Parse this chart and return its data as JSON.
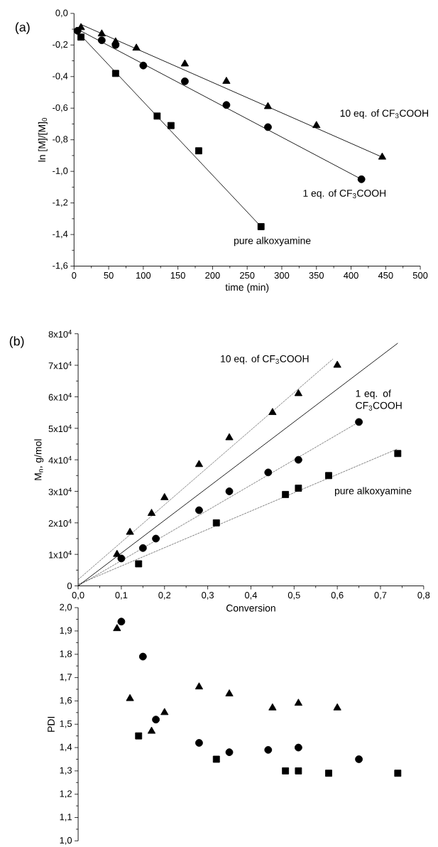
{
  "chart_data": [
    {
      "type": "scatter",
      "title": "(a)",
      "xlabel": "time (min)",
      "ylabel": "ln [M]/[M]$_{0}$",
      "xlim": [
        0,
        500
      ],
      "ylim": [
        -1.6,
        0
      ],
      "xticks": [
        0,
        50,
        100,
        150,
        200,
        250,
        300,
        350,
        400,
        450,
        500
      ],
      "yticks": [
        {
          "value": -1.6,
          "label": "-1,6"
        },
        {
          "value": -1.4,
          "label": "-1,4"
        },
        {
          "value": -1.2,
          "label": "-1,2"
        },
        {
          "value": -1.0,
          "label": "-1,0"
        },
        {
          "value": -0.8,
          "label": "-0,8"
        },
        {
          "value": -0.6,
          "label": "-0,6"
        },
        {
          "value": -0.4,
          "label": "-0,4"
        },
        {
          "value": -0.2,
          "label": "-0,2"
        },
        {
          "value": 0,
          "label": "0,0"
        }
      ],
      "series": [
        {
          "name": "10 eq. of CF$_{3}$COOH",
          "color": "#000000",
          "marker": "triangle",
          "x": [
            10,
            40,
            60,
            90,
            160,
            220,
            280,
            350,
            445
          ],
          "values": [
            -0.09,
            -0.13,
            -0.18,
            -0.22,
            -0.32,
            -0.43,
            -0.59,
            -0.71,
            -0.91
          ]
        },
        {
          "name": "1 eq. of CF$_{3}$COOH",
          "color": "#000000",
          "marker": "circle",
          "x": [
            5,
            40,
            60,
            100,
            160,
            220,
            280,
            415
          ],
          "values": [
            -0.11,
            -0.17,
            -0.2,
            -0.33,
            -0.43,
            -0.58,
            -0.72,
            -1.05
          ]
        },
        {
          "name": "pure alkoxyamine",
          "color": "#000000",
          "marker": "square",
          "x": [
            10,
            60,
            120,
            140,
            180,
            270
          ],
          "values": [
            -0.15,
            -0.38,
            -0.65,
            -0.71,
            -0.87,
            -1.35
          ]
        },
        {
          "type": "line",
          "color": "#000000",
          "marker": "none",
          "line_style": "solid",
          "x": [
            10,
            445
          ],
          "values": [
            -0.07,
            -0.91
          ]
        },
        {
          "type": "line",
          "color": "#000000",
          "marker": "none",
          "line_style": "solid",
          "x": [
            5,
            415
          ],
          "values": [
            -0.1,
            -1.05
          ]
        },
        {
          "type": "line",
          "color": "#000000",
          "marker": "none",
          "line_style": "solid",
          "x": [
            10,
            270
          ],
          "values": [
            -0.14,
            -1.35
          ]
        }
      ]
    },
    {
      "type": "scatter",
      "title": "(b)",
      "xlabel": "Conversion",
      "ylabel": "M$_{n}$, g/mol",
      "xlim": [
        0,
        0.8
      ],
      "ylim": [
        0,
        80000
      ],
      "xticks": [
        {
          "value": 0,
          "label": "0,0"
        },
        {
          "value": 0.1,
          "label": "0,1"
        },
        {
          "value": 0.2,
          "label": "0,2"
        },
        {
          "value": 0.3,
          "label": "0,3"
        },
        {
          "value": 0.4,
          "label": "0,4"
        },
        {
          "value": 0.5,
          "label": "0,5"
        },
        {
          "value": 0.6,
          "label": "0,6"
        },
        {
          "value": 0.7,
          "label": "0,7"
        },
        {
          "value": 0.8,
          "label": "0,8"
        }
      ],
      "yticks": [
        0,
        {
          "value": 10000,
          "label": "1x10$^{4}$"
        },
        {
          "value": 20000,
          "label": "2x10$^{4}$"
        },
        {
          "value": 30000,
          "label": "3x10$^{4}$"
        },
        {
          "value": 40000,
          "label": "4x10$^{4}$"
        },
        {
          "value": 50000,
          "label": "5x10$^{4}$"
        },
        {
          "value": 60000,
          "label": "6x10$^{4}$"
        },
        {
          "value": 70000,
          "label": "7x10$^{4}$"
        },
        {
          "value": 80000,
          "label": "8x10$^{4}$"
        }
      ],
      "series": [
        {
          "name": "10 eq. of CF$_{3}$COOH",
          "color": "#000000",
          "marker": "triangle",
          "x": [
            0.09,
            0.12,
            0.17,
            0.2,
            0.28,
            0.35,
            0.45,
            0.51,
            0.6
          ],
          "values": [
            10000,
            17000,
            23000,
            28000,
            38500,
            47000,
            55000,
            61000,
            70000
          ]
        },
        {
          "name": "1 eq. of CF$_{3}$COOH",
          "color": "#000000",
          "marker": "circle",
          "x": [
            0.1,
            0.15,
            0.18,
            0.28,
            0.35,
            0.44,
            0.51,
            0.65
          ],
          "values": [
            8700,
            12000,
            15000,
            24000,
            30000,
            36000,
            40000,
            52000
          ]
        },
        {
          "name": "pure alkoxyamine",
          "color": "#000000",
          "marker": "square",
          "x": [
            0.14,
            0.32,
            0.48,
            0.51,
            0.58,
            0.74
          ],
          "values": [
            7000,
            20000,
            29000,
            31000,
            35000,
            42000
          ]
        },
        {
          "type": "line",
          "color": "#000000",
          "marker": "none",
          "line_style": "solid",
          "x": [
            0,
            0.74
          ],
          "values": [
            0,
            77000
          ]
        },
        {
          "type": "line",
          "color": "#000000",
          "marker": "none",
          "line_style": "dashed",
          "x": [
            0,
            0.59
          ],
          "values": [
            2000,
            72000
          ]
        },
        {
          "type": "line",
          "color": "#000000",
          "marker": "none",
          "line_style": "dashed",
          "x": [
            0,
            0.65
          ],
          "values": [
            0,
            52000
          ]
        },
        {
          "type": "line",
          "color": "#000000",
          "marker": "none",
          "line_style": "dashed",
          "x": [
            0,
            0.74
          ],
          "values": [
            500,
            43500
          ]
        }
      ]
    },
    {
      "type": "scatter",
      "ylabel": "PDI",
      "xlim": [
        0,
        0.8
      ],
      "ylim": [
        1.0,
        2.0
      ],
      "tick_labels": "y",
      "yticks": [
        {
          "value": 1.0,
          "label": "1,0"
        },
        {
          "value": 1.1,
          "label": "1,1"
        },
        {
          "value": 1.2,
          "label": "1,2"
        },
        {
          "value": 1.3,
          "label": "1,3"
        },
        {
          "value": 1.4,
          "label": "1,4"
        },
        {
          "value": 1.5,
          "label": "1,5"
        },
        {
          "value": 1.6,
          "label": "1,6"
        },
        {
          "value": 1.7,
          "label": "1,7"
        },
        {
          "value": 1.8,
          "label": "1,8"
        },
        {
          "value": 1.9,
          "label": "1,9"
        },
        {
          "value": 2.0,
          "label": "2,0"
        }
      ],
      "series": [
        {
          "color": "#000000",
          "marker": "triangle",
          "x": [
            0.09,
            0.12,
            0.17,
            0.2,
            0.28,
            0.35,
            0.45,
            0.51,
            0.6
          ],
          "values": [
            1.91,
            1.61,
            1.47,
            1.55,
            1.66,
            1.63,
            1.57,
            1.59,
            1.57
          ]
        },
        {
          "color": "#000000",
          "marker": "circle",
          "x": [
            0.1,
            0.15,
            0.18,
            0.28,
            0.35,
            0.44,
            0.51,
            0.65
          ],
          "values": [
            1.94,
            1.79,
            1.52,
            1.42,
            1.38,
            1.39,
            1.4,
            1.35
          ]
        },
        {
          "color": "#000000",
          "marker": "square",
          "x": [
            0.14,
            0.32,
            0.48,
            0.51,
            0.58,
            0.74
          ],
          "values": [
            1.45,
            1.35,
            1.3,
            1.3,
            1.29,
            1.29
          ]
        }
      ]
    }
  ]
}
